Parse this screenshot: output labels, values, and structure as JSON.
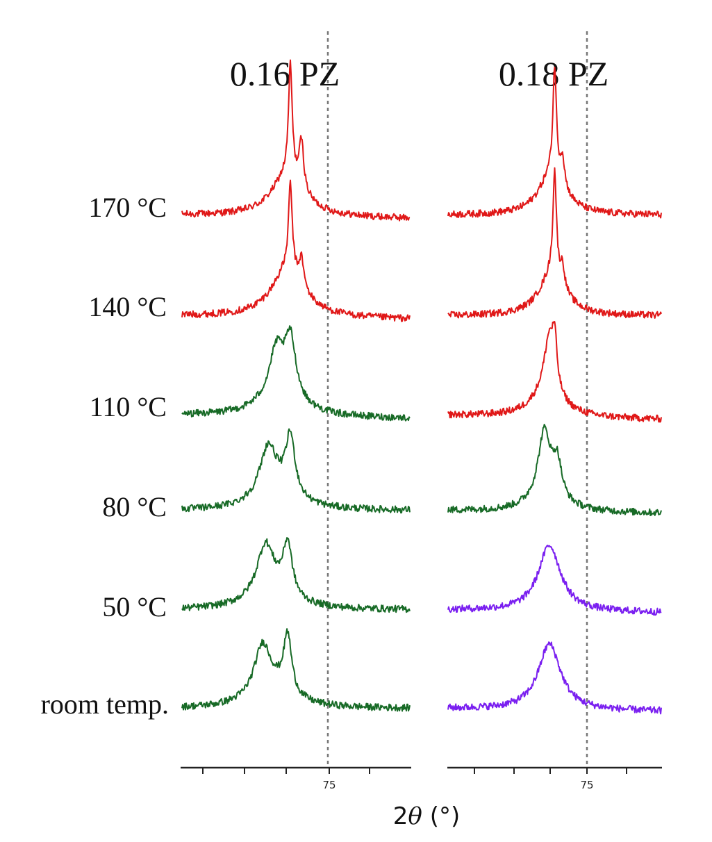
{
  "chart_data": {
    "type": "line",
    "title": "",
    "xlabel_prefix": "2",
    "xlabel_theta": "θ",
    "xlabel_suffix": " (°)",
    "ylabel": "",
    "x_tick_label": "75",
    "xlim": [
      72.5,
      76.6
    ],
    "guide_line_x": 75,
    "colors": {
      "red": "#e01818",
      "green": "#176a26",
      "purple": "#7a1ff0"
    },
    "row_labels": [
      "170 °C",
      "140 °C",
      "110 °C",
      "80 °C",
      "50 °C",
      "room temp."
    ],
    "panels": [
      {
        "name": "0.16 PZ",
        "series": [
          {
            "label": "170 °C",
            "color": "red",
            "peaks": [
              {
                "x": 74.45,
                "h": 160,
                "w": 0.04
              },
              {
                "x": 74.65,
                "h": 70,
                "w": 0.05
              },
              {
                "x": 74.4,
                "h": 60,
                "w": 0.35
              }
            ],
            "baseline_tilt": 5
          },
          {
            "label": "140 °C",
            "color": "red",
            "peaks": [
              {
                "x": 74.45,
                "h": 125,
                "w": 0.04
              },
              {
                "x": 74.65,
                "h": 40,
                "w": 0.05
              },
              {
                "x": 74.4,
                "h": 70,
                "w": 0.35
              }
            ],
            "baseline_tilt": 5
          },
          {
            "label": "110 °C",
            "color": "green",
            "peaks": [
              {
                "x": 74.2,
                "h": 65,
                "w": 0.15
              },
              {
                "x": 74.45,
                "h": 85,
                "w": 0.12
              },
              {
                "x": 74.25,
                "h": 30,
                "w": 0.45
              }
            ],
            "baseline_tilt": 5
          },
          {
            "label": "80 °C",
            "color": "green",
            "peaks": [
              {
                "x": 74.05,
                "h": 70,
                "w": 0.18
              },
              {
                "x": 74.45,
                "h": 85,
                "w": 0.1
              },
              {
                "x": 74.2,
                "h": 25,
                "w": 0.45
              }
            ],
            "baseline_tilt": 0
          },
          {
            "label": "50 °C",
            "color": "green",
            "peaks": [
              {
                "x": 74.0,
                "h": 70,
                "w": 0.18
              },
              {
                "x": 74.4,
                "h": 75,
                "w": 0.1
              },
              {
                "x": 74.1,
                "h": 25,
                "w": 0.45
              }
            ],
            "baseline_tilt": 0
          },
          {
            "label": "room temp.",
            "color": "green",
            "peaks": [
              {
                "x": 73.95,
                "h": 70,
                "w": 0.18
              },
              {
                "x": 74.4,
                "h": 85,
                "w": 0.09
              },
              {
                "x": 74.1,
                "h": 25,
                "w": 0.45
              }
            ],
            "baseline_tilt": 0
          }
        ]
      },
      {
        "name": "0.18 PZ",
        "series": [
          {
            "label": "170 °C",
            "color": "red",
            "peaks": [
              {
                "x": 74.55,
                "h": 155,
                "w": 0.04
              },
              {
                "x": 74.7,
                "h": 40,
                "w": 0.05
              },
              {
                "x": 74.5,
                "h": 60,
                "w": 0.3
              }
            ],
            "baseline_tilt": 0
          },
          {
            "label": "140 °C",
            "color": "red",
            "peaks": [
              {
                "x": 74.55,
                "h": 150,
                "w": 0.04
              },
              {
                "x": 74.7,
                "h": 30,
                "w": 0.05
              },
              {
                "x": 74.5,
                "h": 60,
                "w": 0.3
              }
            ],
            "baseline_tilt": 0
          },
          {
            "label": "110 °C",
            "color": "red",
            "peaks": [
              {
                "x": 74.45,
                "h": 80,
                "w": 0.12
              },
              {
                "x": 74.55,
                "h": 60,
                "w": 0.05
              },
              {
                "x": 74.4,
                "h": 35,
                "w": 0.35
              }
            ],
            "baseline_tilt": 6
          },
          {
            "label": "80 °C",
            "color": "green",
            "peaks": [
              {
                "x": 74.35,
                "h": 90,
                "w": 0.14
              },
              {
                "x": 74.6,
                "h": 50,
                "w": 0.1
              },
              {
                "x": 74.4,
                "h": 25,
                "w": 0.35
              }
            ],
            "baseline_tilt": 4
          },
          {
            "label": "50 °C",
            "color": "purple",
            "peaks": [
              {
                "x": 74.45,
                "h": 95,
                "w": 0.26
              }
            ],
            "baseline_tilt": 4
          },
          {
            "label": "room temp.",
            "color": "purple",
            "peaks": [
              {
                "x": 74.45,
                "h": 95,
                "w": 0.26
              }
            ],
            "baseline_tilt": 4
          }
        ]
      }
    ]
  }
}
